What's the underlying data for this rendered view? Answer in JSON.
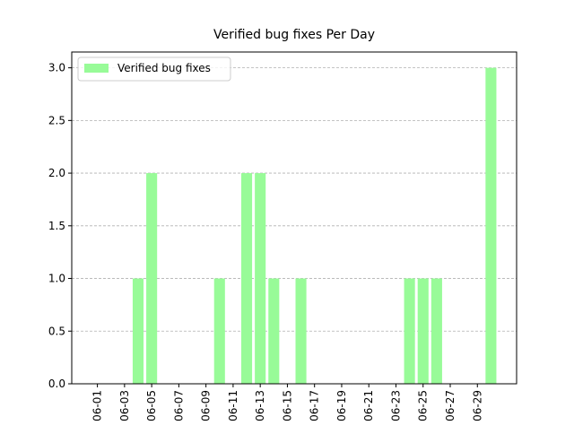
{
  "chart_data": {
    "type": "bar",
    "title": "Verified bug fixes Per Day",
    "categories": [
      "06-01",
      null,
      "06-03",
      null,
      "06-05",
      null,
      "06-07",
      null,
      "06-09",
      null,
      "06-11",
      null,
      "06-13",
      null,
      "06-15",
      null,
      "06-17",
      null,
      "06-19",
      null,
      "06-21",
      null,
      "06-23",
      null,
      "06-25",
      null,
      "06-27",
      null,
      "06-29",
      null
    ],
    "series": [
      {
        "name": "Verified bug fixes",
        "color": "#98fb98",
        "values": [
          0,
          0,
          0,
          1,
          2,
          0,
          0,
          0,
          0,
          1,
          0,
          2,
          2,
          1,
          0,
          1,
          0,
          0,
          0,
          0,
          0,
          0,
          0,
          1,
          1,
          1,
          0,
          0,
          0,
          3
        ]
      }
    ],
    "ylim": [
      0,
      3.15
    ],
    "yticks": [
      {
        "value": 0,
        "label": "0.0"
      },
      {
        "value": 0.5,
        "label": "0.5"
      },
      {
        "value": 1,
        "label": "1.0"
      },
      {
        "value": 1.5,
        "label": "1.5"
      },
      {
        "value": 2,
        "label": "2.0"
      },
      {
        "value": 2.5,
        "label": "2.5"
      },
      {
        "value": 3,
        "label": "3.0"
      }
    ],
    "grid": true,
    "legend": "upper left"
  }
}
